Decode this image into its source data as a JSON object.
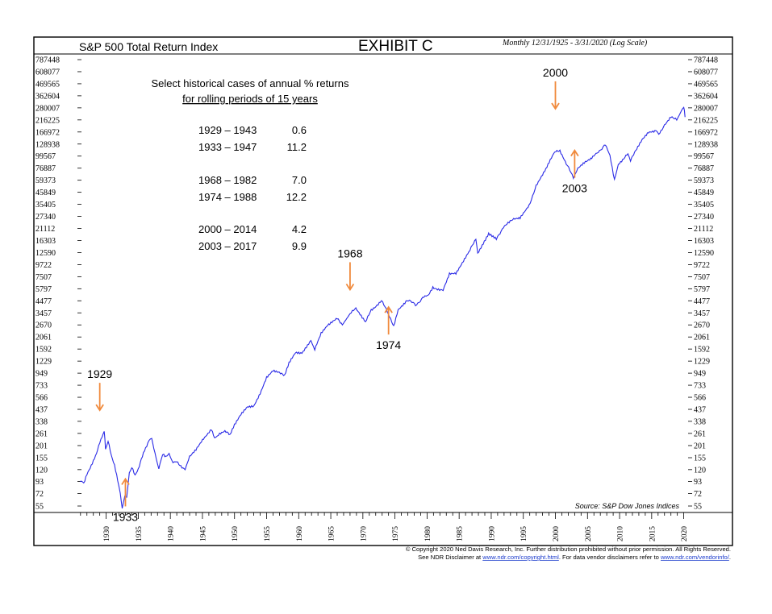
{
  "header": {
    "title": "S&P 500 Total Return Index",
    "exhibit": "EXHIBIT C",
    "period": "Monthly 12/31/1925 - 3/31/2020 (Log Scale)"
  },
  "annotation_box": {
    "heading_line1": "Select historical cases of annual % returns",
    "heading_line2": "for rolling periods of 15 years",
    "cases": [
      {
        "period": "1929 – 1943",
        "value": "0.6"
      },
      {
        "period": "1933 – 1947",
        "value": "11.2"
      },
      {
        "period": "1968 – 1982",
        "value": "7.0"
      },
      {
        "period": "1974 – 1988",
        "value": "12.2"
      },
      {
        "period": "2000 – 2014",
        "value": "4.2"
      },
      {
        "period": "2003 – 2017",
        "value": "9.9"
      }
    ]
  },
  "source": "Source: S&P Dow Jones Indices",
  "footer": {
    "line1": "© Copyright 2020 Ned Davis Research, Inc. Further distribution prohibited without prior permission. All Rights Reserved.",
    "line2_prefix": "See NDR Disclaimer at ",
    "link1": "www.ndr.com/copyright.html",
    "line2_mid": ". For data vendor disclaimers refer to ",
    "link2": "www.ndr.com/vendorinfo/",
    "line2_suffix": "."
  },
  "colors": {
    "line": "#2a2ae6",
    "arrow": "#f08a3c",
    "frame": "#000000"
  },
  "chart_data": {
    "type": "line",
    "title": "S&P 500 Total Return Index",
    "scale": "log",
    "y_ticks": [
      55,
      72,
      93,
      120,
      155,
      201,
      261,
      338,
      437,
      566,
      733,
      949,
      1229,
      1592,
      2061,
      2670,
      3457,
      4477,
      5797,
      7507,
      9722,
      12590,
      16303,
      21112,
      27340,
      35405,
      45849,
      59373,
      76887,
      99567,
      128938,
      166972,
      216225,
      280007,
      362604,
      469565,
      608077,
      787448
    ],
    "x_ticks": [
      1930,
      1935,
      1940,
      1945,
      1950,
      1955,
      1960,
      1965,
      1970,
      1975,
      1980,
      1985,
      1990,
      1995,
      2000,
      2005,
      2010,
      2015,
      2020
    ],
    "x_range": [
      1925.9,
      2020.3
    ],
    "y_range": [
      55,
      787448
    ],
    "series": [
      {
        "points": [
          [
            1925.9,
            93
          ],
          [
            1926.5,
            90
          ],
          [
            1927.0,
            110
          ],
          [
            1927.5,
            125
          ],
          [
            1928.0,
            145
          ],
          [
            1928.5,
            170
          ],
          [
            1929.0,
            215
          ],
          [
            1929.7,
            275
          ],
          [
            1929.9,
            190
          ],
          [
            1930.3,
            220
          ],
          [
            1930.8,
            160
          ],
          [
            1931.3,
            130
          ],
          [
            1931.8,
            95
          ],
          [
            1932.2,
            72
          ],
          [
            1932.5,
            52
          ],
          [
            1932.9,
            70
          ],
          [
            1933.2,
            65
          ],
          [
            1933.6,
            115
          ],
          [
            1934.0,
            125
          ],
          [
            1934.5,
            105
          ],
          [
            1935.0,
            120
          ],
          [
            1935.8,
            175
          ],
          [
            1936.5,
            210
          ],
          [
            1937.1,
            235
          ],
          [
            1937.6,
            170
          ],
          [
            1938.2,
            120
          ],
          [
            1938.8,
            170
          ],
          [
            1939.3,
            160
          ],
          [
            1939.8,
            170
          ],
          [
            1940.4,
            135
          ],
          [
            1941.0,
            145
          ],
          [
            1941.8,
            125
          ],
          [
            1942.3,
            120
          ],
          [
            1943.0,
            160
          ],
          [
            1944.0,
            185
          ],
          [
            1945.0,
            225
          ],
          [
            1946.4,
            290
          ],
          [
            1946.9,
            240
          ],
          [
            1947.5,
            250
          ],
          [
            1948.5,
            270
          ],
          [
            1949.3,
            255
          ],
          [
            1950.0,
            310
          ],
          [
            1951.0,
            390
          ],
          [
            1952.0,
            460
          ],
          [
            1953.0,
            470
          ],
          [
            1954.0,
            620
          ],
          [
            1955.0,
            880
          ],
          [
            1956.0,
            1020
          ],
          [
            1957.0,
            980
          ],
          [
            1957.8,
            900
          ],
          [
            1958.5,
            1200
          ],
          [
            1959.5,
            1480
          ],
          [
            1960.5,
            1450
          ],
          [
            1961.9,
            1950
          ],
          [
            1962.5,
            1560
          ],
          [
            1963.5,
            2200
          ],
          [
            1964.5,
            2600
          ],
          [
            1966.0,
            3050
          ],
          [
            1966.8,
            2700
          ],
          [
            1968.0,
            3400
          ],
          [
            1968.9,
            3750
          ],
          [
            1970.4,
            2800
          ],
          [
            1971.3,
            3700
          ],
          [
            1972.9,
            4450
          ],
          [
            1974.0,
            3400
          ],
          [
            1974.8,
            2550
          ],
          [
            1975.5,
            3700
          ],
          [
            1976.9,
            4600
          ],
          [
            1978.2,
            4100
          ],
          [
            1979.5,
            4800
          ],
          [
            1980.2,
            5000
          ],
          [
            1980.9,
            6000
          ],
          [
            1982.5,
            5600
          ],
          [
            1983.5,
            8000
          ],
          [
            1984.5,
            8100
          ],
          [
            1985.5,
            10200
          ],
          [
            1986.5,
            13000
          ],
          [
            1987.6,
            16400
          ],
          [
            1987.9,
            12200
          ],
          [
            1989.6,
            18500
          ],
          [
            1990.8,
            16700
          ],
          [
            1991.9,
            22000
          ],
          [
            1993.5,
            25500
          ],
          [
            1994.5,
            26000
          ],
          [
            1995.9,
            35000
          ],
          [
            1997.0,
            52000
          ],
          [
            1998.5,
            75000
          ],
          [
            1999.9,
            108000
          ],
          [
            2000.7,
            110000
          ],
          [
            2001.7,
            84000
          ],
          [
            2002.8,
            63000
          ],
          [
            2003.5,
            78000
          ],
          [
            2004.5,
            88000
          ],
          [
            2005.5,
            95000
          ],
          [
            2006.5,
            108000
          ],
          [
            2007.8,
            125000
          ],
          [
            2008.5,
            100000
          ],
          [
            2009.2,
            60000
          ],
          [
            2009.8,
            82000
          ],
          [
            2010.5,
            90000
          ],
          [
            2011.3,
            105000
          ],
          [
            2011.7,
            90000
          ],
          [
            2012.5,
            110000
          ],
          [
            2013.5,
            140000
          ],
          [
            2014.5,
            165000
          ],
          [
            2015.5,
            170000
          ],
          [
            2016.1,
            160000
          ],
          [
            2017.0,
            195000
          ],
          [
            2018.0,
            235000
          ],
          [
            2018.9,
            215000
          ],
          [
            2019.5,
            260000
          ],
          [
            2020.0,
            290000
          ],
          [
            2020.2,
            230000
          ]
        ]
      }
    ],
    "callouts": [
      {
        "label": "1929",
        "x": 1929.0,
        "y": 949,
        "dir": "down"
      },
      {
        "label": "1933",
        "x": 1933.0,
        "y": 40,
        "dir": "up"
      },
      {
        "label": "1968",
        "x": 1968.0,
        "y": 12590,
        "dir": "down"
      },
      {
        "label": "1974",
        "x": 1974.0,
        "y": 1592,
        "dir": "up"
      },
      {
        "label": "2000",
        "x": 2000.0,
        "y": 608077,
        "dir": "down"
      },
      {
        "label": "2003",
        "x": 2003.0,
        "y": 45849,
        "dir": "up"
      }
    ]
  }
}
